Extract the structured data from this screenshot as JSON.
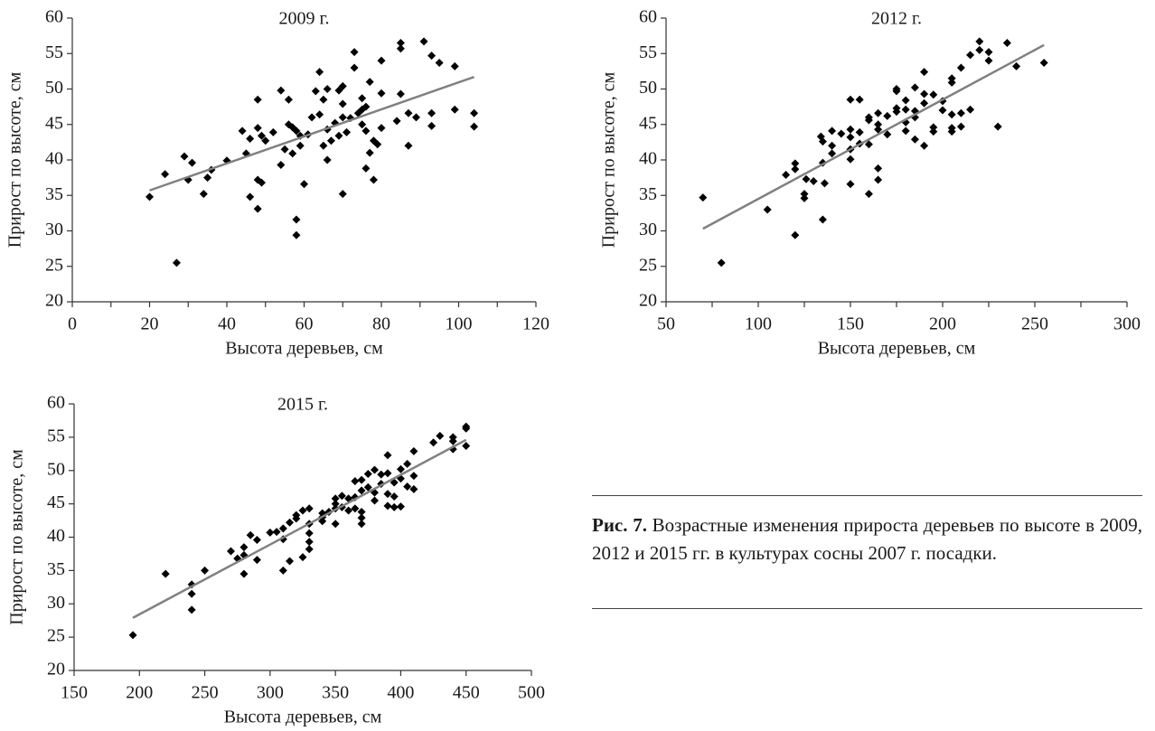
{
  "chart_data": [
    {
      "type": "scatter",
      "title": "2009 г.",
      "x_label": "Высота деревьев, см",
      "y_label": "Прирост по высоте, см",
      "color": "#000000",
      "x": [
        20,
        24,
        27,
        29,
        30,
        31,
        34,
        35,
        36,
        40,
        44,
        45,
        46,
        46,
        48,
        48,
        48,
        48,
        49,
        49,
        50,
        52,
        54,
        54,
        55,
        56,
        56,
        57,
        57,
        58,
        58,
        58,
        59,
        59,
        60,
        61,
        62,
        63,
        64,
        64,
        65,
        65,
        66,
        66,
        66,
        67,
        68,
        69,
        69,
        70,
        70,
        70,
        70,
        71,
        72,
        73,
        73,
        74,
        75,
        75,
        75,
        76,
        76,
        76,
        77,
        77,
        78,
        78,
        79,
        80,
        80,
        80,
        84,
        85,
        85,
        85,
        87,
        87,
        89,
        91,
        93,
        93,
        93,
        95,
        99,
        99,
        104,
        104
      ],
      "values": [
        34.8,
        38,
        25.5,
        40.5,
        37.2,
        39.6,
        35.2,
        37.5,
        38.6,
        39.9,
        44.1,
        40.9,
        34.8,
        43,
        48.5,
        44.5,
        37.2,
        33.1,
        36.8,
        43.4,
        42.7,
        43.9,
        49.8,
        39.3,
        41.5,
        48.5,
        45,
        40.9,
        44.6,
        44.1,
        31.6,
        29.4,
        43.4,
        42,
        36.6,
        43.6,
        46,
        49.7,
        52.4,
        46.4,
        42,
        48.5,
        50,
        44.3,
        40,
        42.7,
        45.2,
        49.8,
        43.4,
        50.4,
        35.2,
        47.9,
        46,
        43.9,
        45.9,
        55.2,
        53,
        46.6,
        48.7,
        47.1,
        45,
        47.5,
        38.8,
        44.1,
        51,
        41,
        37.2,
        42.7,
        42.2,
        49.4,
        54,
        44.5,
        45.5,
        56.5,
        55.7,
        49.3,
        42,
        46.6,
        46,
        56.7,
        54.7,
        46.6,
        44.8,
        53.7,
        53.2,
        47.1,
        46.6,
        44.7
      ],
      "trendline": {
        "x": [
          20,
          104
        ],
        "values": [
          35.7,
          51.7
        ],
        "color": "#808080"
      },
      "xlim": [
        0,
        120
      ],
      "xticks": [
        0,
        20,
        40,
        60,
        80,
        100,
        120
      ],
      "xminorticks": [
        10,
        30,
        50,
        70,
        90,
        110
      ],
      "ylim": [
        20,
        60
      ],
      "yticks": [
        20,
        25,
        30,
        35,
        40,
        45,
        50,
        55,
        60
      ]
    },
    {
      "type": "scatter",
      "title": "2012 г.",
      "x_label": "Высота деревьев, см",
      "y_label": "Прирост по высоте, см",
      "color": "#000000",
      "x": [
        70,
        80,
        105,
        115,
        120,
        120,
        120,
        125,
        125,
        126,
        130,
        134,
        135,
        135,
        135,
        136,
        140,
        140,
        140,
        145,
        150,
        150,
        150,
        150,
        150,
        150,
        155,
        155,
        155,
        160,
        160,
        160,
        160,
        165,
        165,
        165,
        165,
        165,
        170,
        170,
        175,
        175,
        175,
        175,
        180,
        180,
        180,
        180,
        185,
        185,
        185,
        185,
        190,
        190,
        190,
        190,
        195,
        195,
        195,
        200,
        200,
        205,
        205,
        205,
        205,
        205,
        210,
        210,
        210,
        215,
        215,
        220,
        220,
        225,
        225,
        230,
        235,
        240,
        255
      ],
      "values": [
        34.7,
        25.5,
        33,
        37.9,
        39.5,
        38.7,
        29.4,
        35.2,
        34.6,
        37.3,
        37,
        43.3,
        42.6,
        39.6,
        31.6,
        36.7,
        44.1,
        42,
        40.9,
        43.7,
        48.5,
        44.3,
        43.2,
        41.5,
        40.1,
        36.6,
        48.5,
        43.9,
        42.3,
        46,
        45.6,
        42.2,
        35.2,
        46.6,
        45,
        44.3,
        38.8,
        37.2,
        46.2,
        43.6,
        50,
        49.7,
        47.3,
        46.8,
        48.4,
        47.1,
        45.3,
        44.1,
        50.2,
        46.9,
        46,
        42.9,
        52.4,
        49.3,
        48,
        42,
        49.2,
        44.6,
        44,
        48.3,
        47,
        51.5,
        50.9,
        46.4,
        44.5,
        44,
        53,
        46.6,
        44.7,
        54.8,
        47.1,
        56.7,
        55.5,
        55.2,
        54,
        44.7,
        56.5,
        53.2,
        53.7
      ],
      "trendline": {
        "x": [
          70,
          255
        ],
        "values": [
          30.3,
          56.2
        ],
        "color": "#808080"
      },
      "xlim": [
        50,
        300
      ],
      "xticks": [
        50,
        100,
        150,
        200,
        250,
        300
      ],
      "xminorticks": [
        75,
        125,
        175,
        225,
        275
      ],
      "ylim": [
        20,
        60
      ],
      "yticks": [
        20,
        25,
        30,
        35,
        40,
        45,
        50,
        55,
        60
      ]
    },
    {
      "type": "scatter",
      "title": "2015 г.",
      "x_label": "Высота деревьев, см",
      "y_label": "Прирост по высоте, см",
      "color": "#000000",
      "x": [
        195,
        220,
        240,
        240,
        240,
        250,
        270,
        275,
        280,
        280,
        280,
        285,
        290,
        290,
        300,
        305,
        310,
        310,
        310,
        315,
        315,
        320,
        320,
        325,
        325,
        330,
        330,
        330,
        330,
        330,
        340,
        340,
        340,
        345,
        350,
        350,
        350,
        350,
        355,
        355,
        360,
        360,
        365,
        365,
        365,
        370,
        370,
        370,
        370,
        370,
        375,
        375,
        380,
        380,
        380,
        385,
        385,
        390,
        390,
        390,
        390,
        395,
        395,
        395,
        400,
        400,
        400,
        405,
        405,
        410,
        410,
        410,
        425,
        430,
        440,
        440,
        440,
        450,
        450,
        450
      ],
      "values": [
        25.3,
        34.5,
        32.9,
        31.5,
        29.1,
        35,
        37.9,
        36.8,
        38.5,
        37.3,
        34.5,
        40.3,
        39.6,
        36.6,
        40.7,
        40.8,
        41.3,
        39.7,
        35,
        42.2,
        36.4,
        42.8,
        43.3,
        44,
        37,
        44.3,
        42,
        40.6,
        39.3,
        38.2,
        43.6,
        43,
        42.4,
        43.8,
        45.8,
        45,
        44.3,
        42,
        46.2,
        44.5,
        45.8,
        44,
        48.4,
        46,
        44.3,
        48.6,
        47,
        43.8,
        42.9,
        42,
        49.5,
        47.5,
        50.1,
        46.7,
        45.5,
        49.4,
        48,
        52.3,
        49.6,
        46.5,
        44.7,
        48.2,
        46.1,
        44.5,
        50.2,
        48.8,
        44.6,
        51,
        47.6,
        52.9,
        49.2,
        47.2,
        54.2,
        55.2,
        55,
        54.4,
        53.2,
        56.6,
        56.3,
        53.7
      ],
      "trendline": {
        "x": [
          195,
          450
        ],
        "values": [
          27.9,
          54.6
        ],
        "color": "#808080"
      },
      "xlim": [
        150,
        500
      ],
      "xticks": [
        150,
        200,
        250,
        300,
        350,
        400,
        450,
        500
      ],
      "ylim": [
        20,
        60
      ],
      "yticks": [
        20,
        25,
        30,
        35,
        40,
        45,
        50,
        55,
        60
      ]
    }
  ],
  "caption": {
    "label": "Рис. 7.",
    "text": "Возрастные изменения прироста деревьев по высоте в 2009, 2012 и 2015 гг. в культурах сосны 2007 г. посадки."
  }
}
